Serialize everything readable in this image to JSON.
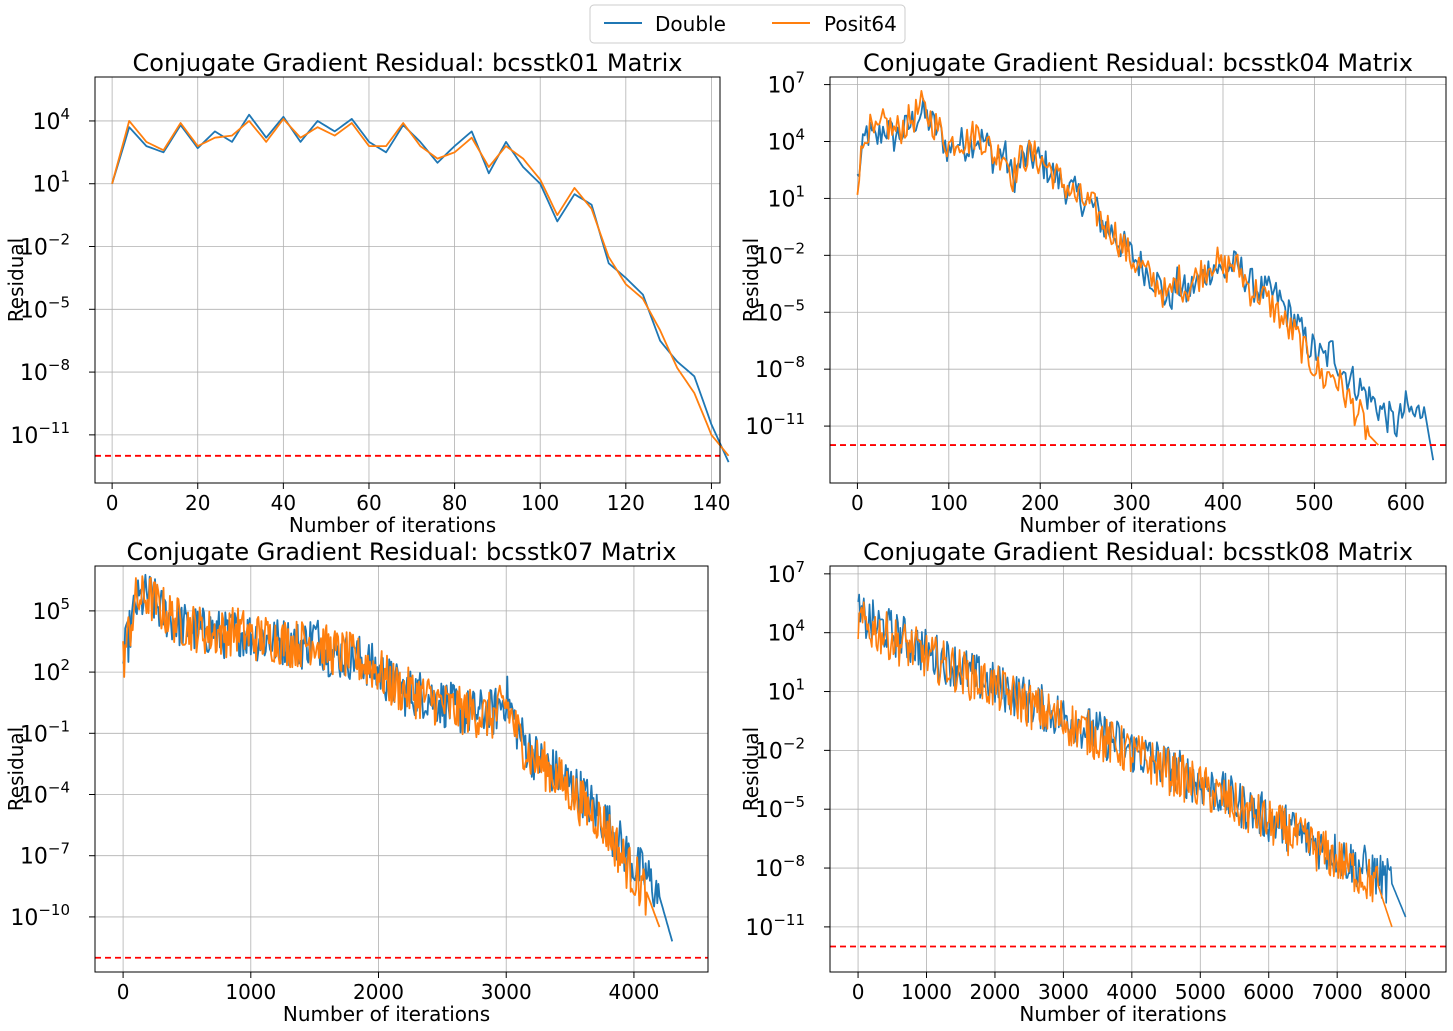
{
  "legend": {
    "placement": "top-center",
    "entries": [
      {
        "label": "Double",
        "color": "#1f77b4"
      },
      {
        "label": "Posit64",
        "color": "#ff7f0e"
      }
    ]
  },
  "colors": {
    "double": "#1f77b4",
    "posit": "#ff7f0e",
    "threshold": "#ff0000",
    "grid": "#b0b0b0"
  },
  "chart_data": [
    {
      "type": "line",
      "title": "Conjugate Gradient Residual: bcsstk01 Matrix",
      "xlabel": "Number of iterations",
      "ylabel": "Residual",
      "xlim": [
        -4,
        142
      ],
      "ylim_log10": [
        -13.3,
        6.1
      ],
      "xticks": [
        0,
        20,
        40,
        60,
        80,
        100,
        120,
        140
      ],
      "xtick_labels": [
        "0",
        "20",
        "40",
        "60",
        "80",
        "100",
        "120",
        "140"
      ],
      "yticks_log10": [
        4,
        1,
        -2,
        -5,
        -8,
        -11
      ],
      "threshold_log10": -12.0,
      "grid": true,
      "series": [
        {
          "name": "Double",
          "sample_every": 4,
          "log10_values": [
            1.0,
            3.7,
            2.8,
            2.5,
            3.8,
            2.7,
            3.5,
            3.0,
            4.3,
            3.2,
            4.2,
            3.0,
            4.0,
            3.5,
            4.1,
            3.0,
            2.5,
            3.8,
            3.0,
            2.0,
            2.8,
            3.5,
            1.5,
            3.0,
            1.8,
            1.0,
            -0.8,
            0.5,
            0.0,
            -2.8,
            -3.5,
            -4.3,
            -6.5,
            -7.5,
            -8.2,
            -10.5,
            -12.3
          ]
        },
        {
          "name": "Posit64",
          "sample_every": 4,
          "log10_values": [
            1.0,
            4.0,
            3.0,
            2.6,
            3.9,
            2.8,
            3.2,
            3.3,
            4.0,
            3.0,
            4.1,
            3.2,
            3.7,
            3.3,
            3.9,
            2.8,
            2.8,
            3.9,
            2.8,
            2.2,
            2.5,
            3.2,
            1.8,
            2.8,
            2.2,
            1.2,
            -0.5,
            0.8,
            -0.2,
            -2.5,
            -3.8,
            -4.5,
            -6.0,
            -7.8,
            -9.0,
            -11.0,
            -12.0
          ]
        }
      ]
    },
    {
      "type": "line",
      "title": "Conjugate Gradient Residual: bcsstk04 Matrix",
      "xlabel": "Number of iterations",
      "ylabel": "Residual",
      "xlim": [
        -30,
        644
      ],
      "ylim_log10": [
        -14.0,
        7.4
      ],
      "xticks": [
        0,
        100,
        200,
        300,
        400,
        500,
        600
      ],
      "xtick_labels": [
        "0",
        "100",
        "200",
        "300",
        "400",
        "500",
        "600"
      ],
      "yticks_log10": [
        7,
        4,
        1,
        -2,
        -5,
        -8,
        -11
      ],
      "threshold_log10": -12.0,
      "grid": true,
      "series": [
        {
          "name": "Double",
          "sample_every": 10,
          "log10_values": [
            2.0,
            4.5,
            4.0,
            4.8,
            4.2,
            4.5,
            5.0,
            5.5,
            5.0,
            4.5,
            3.5,
            4.0,
            3.8,
            4.2,
            4.0,
            3.0,
            3.5,
            2.0,
            3.0,
            3.2,
            3.0,
            2.5,
            2.0,
            1.5,
            1.2,
            0.8,
            0.5,
            -0.5,
            -0.8,
            -1.5,
            -2.0,
            -2.5,
            -3.0,
            -3.5,
            -4.5,
            -3.5,
            -4.0,
            -3.5,
            -3.0,
            -2.5,
            -3.0,
            -2.5,
            -2.8,
            -3.5,
            -3.8,
            -4.0,
            -4.2,
            -5.0,
            -5.5,
            -6.5,
            -7.0,
            -7.5,
            -7.0,
            -8.0,
            -8.5,
            -9.0,
            -9.5,
            -10.0,
            -10.5,
            -11.0,
            -10.0,
            -10.5,
            -10.0,
            -12.8
          ]
        },
        {
          "name": "Posit64",
          "sample_every": 10,
          "log10_values": [
            2.0,
            4.8,
            4.2,
            5.0,
            4.5,
            4.8,
            5.2,
            5.8,
            5.2,
            4.6,
            3.8,
            4.2,
            4.0,
            4.5,
            4.0,
            3.2,
            3.5,
            2.2,
            3.2,
            3.3,
            3.0,
            2.6,
            2.0,
            1.6,
            1.0,
            0.8,
            0.4,
            -0.4,
            -0.7,
            -1.5,
            -2.2,
            -2.6,
            -3.2,
            -3.6,
            -4.3,
            -3.2,
            -3.8,
            -3.2,
            -2.7,
            -2.2,
            -2.8,
            -2.4,
            -2.9,
            -3.8,
            -4.0,
            -4.5,
            -5.0,
            -5.8,
            -6.2,
            -7.2,
            -7.8,
            -8.5,
            -8.2,
            -9.0,
            -9.8,
            -10.5,
            -11.5,
            -12.0
          ]
        }
      ]
    },
    {
      "type": "line",
      "title": "Conjugate Gradient Residual: bcsstk07 Matrix",
      "xlabel": "Number of iterations",
      "ylabel": "Residual",
      "xlim": [
        -220,
        4580
      ],
      "ylim_log10": [
        -12.7,
        7.2
      ],
      "xticks": [
        0,
        1000,
        2000,
        3000,
        4000
      ],
      "xtick_labels": [
        "0",
        "1000",
        "2000",
        "3000",
        "4000"
      ],
      "yticks_log10": [
        5,
        2,
        -1,
        -4,
        -7,
        -10
      ],
      "threshold_log10": -12.0,
      "grid": true,
      "series": [
        {
          "name": "Double",
          "sample_every": 100,
          "log10_values": [
            2.5,
            5.3,
            5.8,
            5.0,
            4.5,
            4.2,
            4.0,
            4.0,
            3.8,
            4.0,
            3.8,
            3.6,
            3.5,
            3.5,
            3.3,
            3.8,
            3.0,
            2.8,
            2.8,
            2.5,
            2.0,
            1.5,
            1.0,
            1.0,
            0.8,
            0.5,
            0.2,
            0.0,
            0.0,
            0.0,
            0.8,
            -1.0,
            -2.0,
            -2.5,
            -3.0,
            -3.5,
            -4.0,
            -4.8,
            -5.5,
            -6.5,
            -7.5,
            -8.0,
            -9.0,
            -11.2
          ]
        },
        {
          "name": "Posit64",
          "sample_every": 100,
          "log10_values": [
            2.6,
            5.5,
            5.7,
            5.1,
            4.6,
            4.3,
            4.1,
            3.9,
            3.9,
            4.1,
            3.7,
            3.7,
            3.6,
            3.4,
            3.4,
            3.6,
            3.1,
            2.9,
            2.7,
            2.4,
            2.1,
            1.4,
            1.1,
            0.9,
            0.7,
            0.4,
            0.1,
            0.1,
            -0.1,
            -0.2,
            0.5,
            -1.2,
            -2.2,
            -2.6,
            -3.2,
            -3.8,
            -4.5,
            -5.0,
            -5.8,
            -7.0,
            -8.0,
            -8.8,
            -10.5
          ]
        }
      ]
    },
    {
      "type": "line",
      "title": "Conjugate Gradient Residual: bcsstk08 Matrix",
      "xlabel": "Number of iterations",
      "ylabel": "Residual",
      "xlim": [
        -410,
        8590
      ],
      "ylim_log10": [
        -13.3,
        7.4
      ],
      "xticks": [
        0,
        1000,
        2000,
        3000,
        4000,
        5000,
        6000,
        7000,
        8000
      ],
      "xtick_labels": [
        "0",
        "1000",
        "2000",
        "3000",
        "4000",
        "5000",
        "6000",
        "7000",
        "8000"
      ],
      "yticks_log10": [
        7,
        4,
        1,
        -2,
        -5,
        -8,
        -11
      ],
      "threshold_log10": -12.0,
      "grid": true,
      "series": [
        {
          "name": "Double",
          "sample_every": 200,
          "log10_values": [
            4.8,
            4.5,
            4.2,
            3.8,
            3.5,
            3.0,
            2.7,
            2.4,
            2.0,
            1.6,
            1.3,
            1.0,
            0.7,
            0.3,
            0.0,
            -0.3,
            -0.6,
            -1.0,
            -1.3,
            -1.6,
            -2.0,
            -2.3,
            -2.6,
            -3.0,
            -3.3,
            -3.7,
            -4.0,
            -4.4,
            -4.8,
            -5.1,
            -5.5,
            -5.8,
            -6.2,
            -6.6,
            -7.0,
            -7.3,
            -7.7,
            -8.0,
            -8.4,
            -8.8,
            -10.5
          ]
        },
        {
          "name": "Posit64",
          "sample_every": 200,
          "log10_values": [
            4.5,
            4.2,
            3.9,
            3.5,
            3.2,
            2.8,
            2.5,
            2.2,
            1.8,
            1.5,
            1.2,
            0.8,
            0.5,
            0.1,
            -0.2,
            -0.5,
            -0.8,
            -1.2,
            -1.5,
            -1.8,
            -2.2,
            -2.5,
            -2.8,
            -3.2,
            -3.5,
            -3.9,
            -4.2,
            -4.6,
            -5.0,
            -5.3,
            -5.7,
            -6.0,
            -6.4,
            -6.8,
            -7.2,
            -7.6,
            -8.0,
            -8.5,
            -8.9,
            -11.0
          ]
        }
      ]
    }
  ]
}
